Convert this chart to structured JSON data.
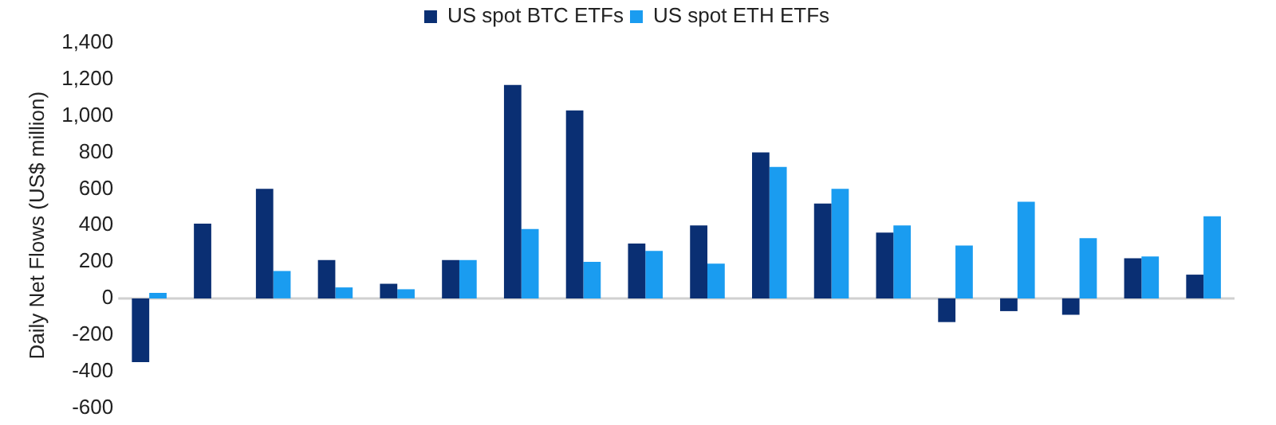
{
  "chart_data": {
    "type": "bar",
    "ylabel": "Daily Net Flows (US$ million)",
    "categories": [
      null,
      null,
      null,
      null,
      null,
      null,
      null,
      null,
      null,
      null,
      null,
      null,
      null,
      null,
      null,
      null,
      null,
      null
    ],
    "series": [
      {
        "name": "US spot BTC ETFs",
        "color": "#0a2f73",
        "values": [
          -350,
          410,
          600,
          210,
          80,
          210,
          1170,
          1030,
          300,
          400,
          800,
          520,
          360,
          -130,
          -70,
          -90,
          220,
          130
        ]
      },
      {
        "name": "US spot ETH ETFs",
        "color": "#1a9cf0",
        "values": [
          30,
          null,
          150,
          60,
          50,
          210,
          380,
          200,
          260,
          190,
          720,
          600,
          400,
          290,
          530,
          330,
          230,
          450
        ]
      }
    ],
    "ylim": [
      -600,
      1400
    ],
    "yticks": [
      {
        "value": -600,
        "label": "-600"
      },
      {
        "value": -400,
        "label": "-400"
      },
      {
        "value": -200,
        "label": "-200"
      },
      {
        "value": 0,
        "label": "0"
      },
      {
        "value": 200,
        "label": "200"
      },
      {
        "value": 400,
        "label": "400"
      },
      {
        "value": 600,
        "label": "600"
      },
      {
        "value": 800,
        "label": "800"
      },
      {
        "value": 1000,
        "label": "1,000"
      },
      {
        "value": 1200,
        "label": "1,200"
      },
      {
        "value": 1400,
        "label": "1,400"
      }
    ],
    "ref_lines": [
      {
        "axis": "y",
        "value": 0,
        "color": "#d0d0d0"
      }
    ],
    "grid": false,
    "legend": "top",
    "tick_labels": "y"
  }
}
